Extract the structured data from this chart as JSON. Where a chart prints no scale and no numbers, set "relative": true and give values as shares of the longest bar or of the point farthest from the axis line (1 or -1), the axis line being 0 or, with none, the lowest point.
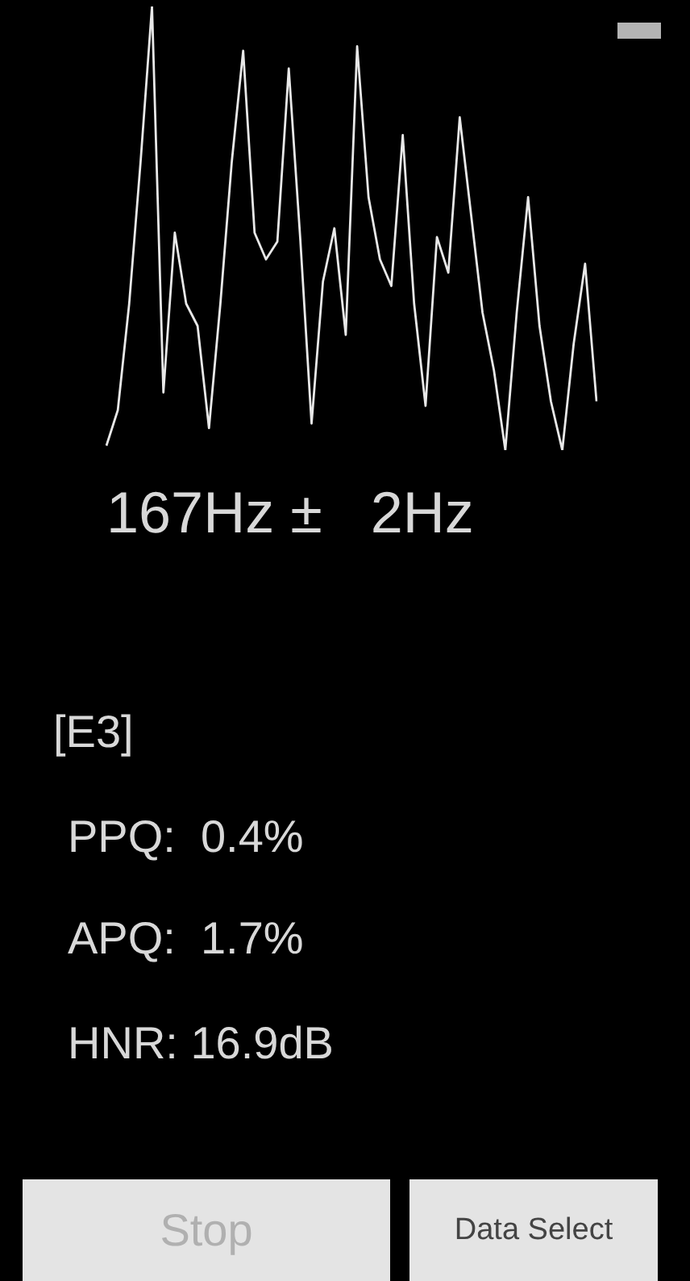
{
  "chart_data": {
    "type": "line",
    "relative": true,
    "legend": false,
    "marker": "none",
    "line_style": "solid",
    "categories": [
      null,
      null,
      null,
      null,
      null,
      null,
      null,
      null,
      null,
      null,
      null,
      null,
      null,
      null,
      null,
      null,
      null,
      null,
      null,
      null,
      null,
      null,
      null,
      null,
      null,
      null,
      null,
      null,
      null,
      null,
      null,
      null,
      null,
      null,
      null,
      null,
      null,
      null,
      null,
      null,
      null,
      null,
      null,
      null
    ],
    "series": [
      {
        "color": "#e8e8e8",
        "values": [
          0.01,
          0.09,
          0.33,
          0.65,
          1,
          0.13,
          0.49,
          0.33,
          0.28,
          0.05,
          0.33,
          0.65,
          0.9,
          0.49,
          0.43,
          0.47,
          0.86,
          0.48,
          0.06,
          0.38,
          0.5,
          0.26,
          0.91,
          0.57,
          0.43,
          0.37,
          0.71,
          0.33,
          0.1,
          0.48,
          0.4,
          0.75,
          0.53,
          0.31,
          0.18,
          0,
          0.31,
          0.57,
          0.28,
          0.11,
          0,
          0.24,
          0.42,
          0.11
        ]
      }
    ],
    "annotations": [
      "167Hz ±   2Hz",
      "[E3]",
      "PPQ:  0.4%",
      "APQ:  1.7%",
      "HNR: 16.9dB",
      "Stop",
      "Data Select"
    ]
  }
}
